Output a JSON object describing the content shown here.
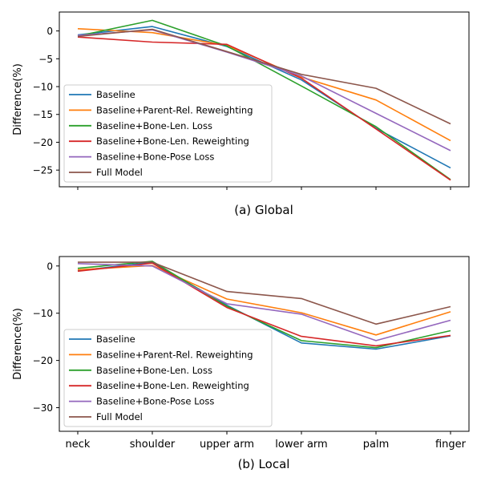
{
  "chart_data": [
    {
      "type": "line",
      "title": "(a) Global",
      "xlabel": "",
      "ylabel": "Difference(%)",
      "categories": [
        "neck",
        "shoulder",
        "upper arm",
        "lower arm",
        "palm",
        "finger"
      ],
      "show_xticklabels": false,
      "ylim": [
        -28,
        3.4
      ],
      "yticks": [
        0,
        -5,
        -10,
        -15,
        -20,
        -25
      ],
      "grid": false,
      "legend_position": "lower-left",
      "series": [
        {
          "name": "Baseline",
          "color": "#1f77b4",
          "values": [
            -0.7,
            0.8,
            -2.8,
            -8.8,
            -17.5,
            -24.6
          ]
        },
        {
          "name": "Baseline+Parent-Rel. Reweighting",
          "color": "#ff7f0e",
          "values": [
            0.4,
            -0.3,
            -2.6,
            -8.3,
            -12.4,
            -19.7
          ]
        },
        {
          "name": "Baseline+Bone-Len. Loss",
          "color": "#2ca02c",
          "values": [
            -0.9,
            1.9,
            -2.7,
            -9.9,
            -17.2,
            -26.7
          ]
        },
        {
          "name": "Baseline+Bone-Len. Reweighting",
          "color": "#d62728",
          "values": [
            -1.1,
            -2.0,
            -2.4,
            -8.5,
            -17.6,
            -26.8
          ]
        },
        {
          "name": "Baseline+Bone-Pose Loss",
          "color": "#9467bd",
          "values": [
            -0.8,
            0.2,
            -3.8,
            -8.1,
            -14.8,
            -21.5
          ]
        },
        {
          "name": "Full Model",
          "color": "#8c564b",
          "values": [
            -1.0,
            0.3,
            -3.7,
            -7.8,
            -10.3,
            -16.7
          ]
        }
      ]
    },
    {
      "type": "line",
      "title": "(b) Local",
      "xlabel": "",
      "ylabel": "Difference(%)",
      "categories": [
        "neck",
        "shoulder",
        "upper arm",
        "lower arm",
        "palm",
        "finger"
      ],
      "show_xticklabels": true,
      "ylim": [
        -35,
        2
      ],
      "yticks": [
        0,
        -10,
        -20,
        -30
      ],
      "grid": false,
      "legend_position": "lower-left",
      "series": [
        {
          "name": "Baseline",
          "color": "#1f77b4",
          "values": [
            -1.0,
            0.8,
            -8.3,
            -16.3,
            -17.6,
            -14.8
          ]
        },
        {
          "name": "Baseline+Parent-Rel. Reweighting",
          "color": "#ff7f0e",
          "values": [
            -0.8,
            0.1,
            -7.0,
            -9.9,
            -14.6,
            -9.7
          ]
        },
        {
          "name": "Baseline+Bone-Len. Loss",
          "color": "#2ca02c",
          "values": [
            -0.5,
            1.0,
            -8.5,
            -15.8,
            -17.3,
            -13.7
          ]
        },
        {
          "name": "Baseline+Bone-Len. Reweighting",
          "color": "#d62728",
          "values": [
            -1.1,
            0.6,
            -8.8,
            -14.9,
            -16.9,
            -14.7
          ]
        },
        {
          "name": "Baseline+Bone-Pose Loss",
          "color": "#9467bd",
          "values": [
            0.5,
            0.0,
            -8.0,
            -10.2,
            -15.8,
            -11.5
          ]
        },
        {
          "name": "Full Model",
          "color": "#8c564b",
          "values": [
            0.8,
            0.8,
            -5.4,
            -6.9,
            -12.3,
            -8.6
          ]
        }
      ]
    }
  ]
}
